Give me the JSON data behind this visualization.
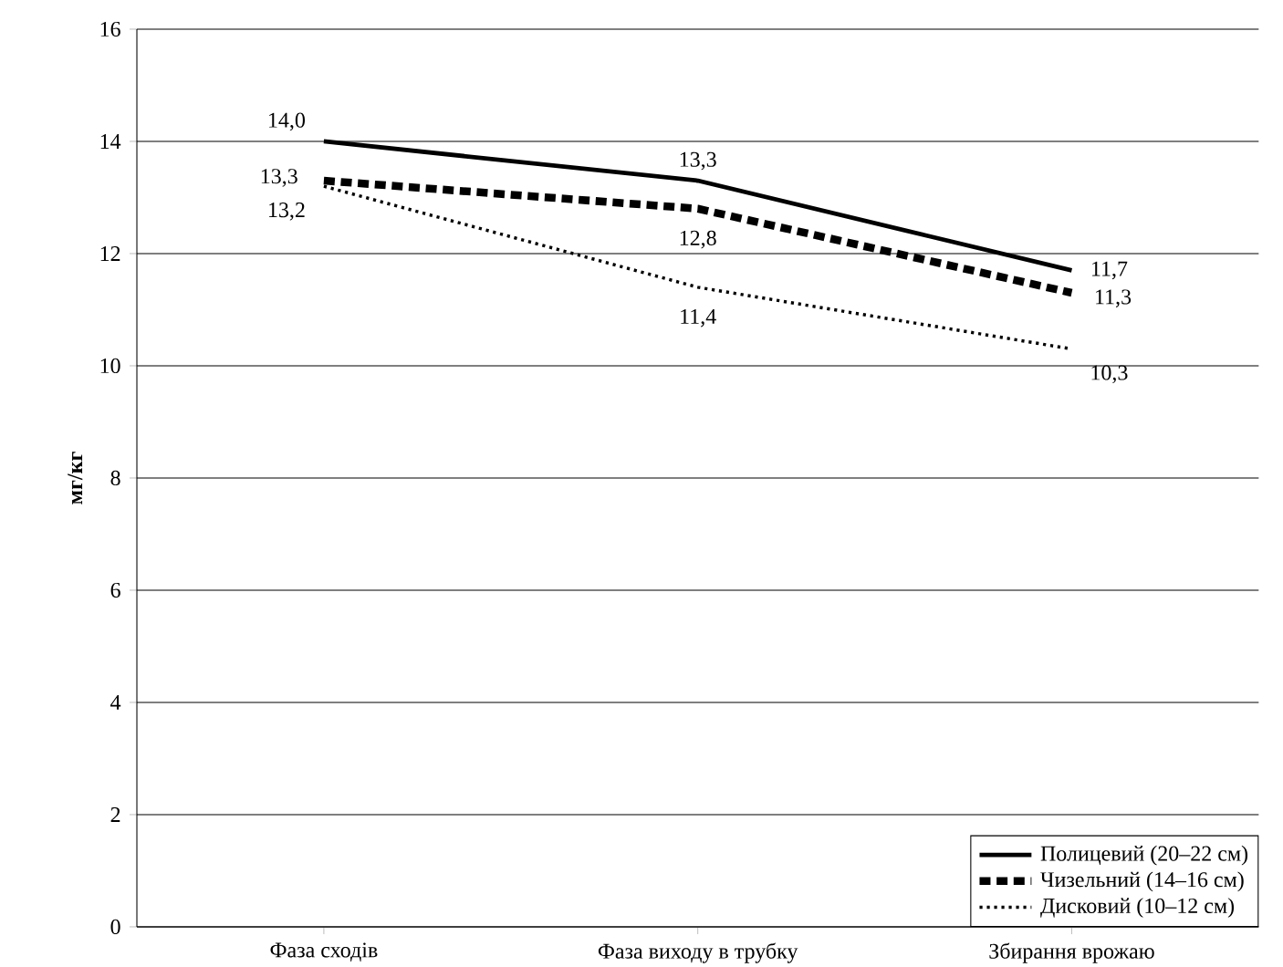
{
  "chart_data": {
    "type": "line",
    "ylabel": "мг/кг",
    "categories": [
      "Фаза сходів",
      "Фаза виходу в трубку",
      "Збирання врожаю"
    ],
    "ylim": [
      0,
      16
    ],
    "yticks": [
      0,
      2,
      4,
      6,
      8,
      10,
      12,
      14,
      16
    ],
    "grid": "y",
    "legend": "bottom right",
    "series": [
      {
        "name": "Полицевий (20–22 см)",
        "color": "#000000",
        "line_style": "solid",
        "values": [
          14.0,
          13.3,
          11.7
        ],
        "value_labels": [
          "14,0",
          "13,3",
          "11,7"
        ]
      },
      {
        "name": "Чизельний (14–16 см)",
        "color": "#000000",
        "line_style": "dashed",
        "values": [
          13.3,
          12.8,
          11.3
        ],
        "value_labels": [
          "13,3",
          "12,8",
          "11,3"
        ]
      },
      {
        "name": "Дисковий (10–12 см)",
        "color": "#000000",
        "line_style": "dotted",
        "values": [
          13.2,
          11.4,
          10.3
        ],
        "value_labels": [
          "13,2",
          "11,4",
          "10,3"
        ]
      }
    ]
  }
}
